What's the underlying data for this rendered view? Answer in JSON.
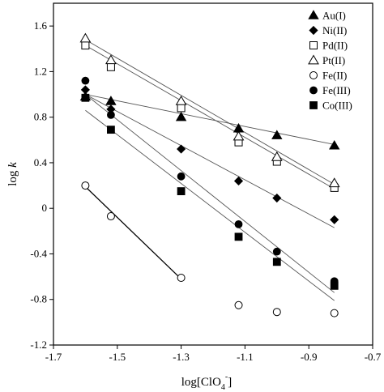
{
  "chart_data": {
    "type": "scatter",
    "xlabel": "log[ClO4-]",
    "ylabel": "log k",
    "xlim": [
      -1.7,
      -0.7
    ],
    "ylim": [
      -1.2,
      1.8
    ],
    "xticks": [
      -1.7,
      -1.5,
      -1.3,
      -1.1,
      -0.9,
      -0.7
    ],
    "xtick_labels": [
      "-1.7",
      "-1.5",
      "-1.3",
      "-1.1",
      "-0.9",
      "-0.7"
    ],
    "yticks": [
      -1.2,
      -0.8,
      -0.4,
      0,
      0.4,
      0.8,
      1.2,
      1.6
    ],
    "ytick_labels": [
      "-1.2",
      "-0.8",
      "-0.4",
      "0",
      "0.4",
      "0.8",
      "1.2",
      "1.6"
    ],
    "grid": false,
    "legend_position": "top-right",
    "series": [
      {
        "name": "Au(I)",
        "marker": "triangle-filled",
        "x": [
          -1.6,
          -1.52,
          -1.3,
          -1.12,
          -1.0,
          -0.82
        ],
        "y": [
          0.98,
          0.94,
          0.8,
          0.7,
          0.64,
          0.55
        ],
        "fit": {
          "x": [
            -1.6,
            -0.82
          ],
          "y": [
            1.0,
            0.56
          ],
          "color": "#555555"
        }
      },
      {
        "name": "Ni(II)",
        "marker": "diamond-filled",
        "x": [
          -1.6,
          -1.52,
          -1.3,
          -1.12,
          -1.0,
          -0.82
        ],
        "y": [
          1.04,
          0.87,
          0.52,
          0.24,
          0.09,
          -0.1
        ],
        "fit": {
          "x": [
            -1.6,
            -0.82
          ],
          "y": [
            1.0,
            -0.17
          ],
          "color": "#555555"
        }
      },
      {
        "name": "Pd(II)",
        "marker": "square-open",
        "x": [
          -1.6,
          -1.52,
          -1.3,
          -1.12,
          -1.0,
          -0.82
        ],
        "y": [
          1.43,
          1.24,
          0.88,
          0.58,
          0.41,
          0.18
        ],
        "fit": {
          "x": [
            -1.6,
            -0.82
          ],
          "y": [
            1.43,
            0.17
          ],
          "color": "#555555"
        }
      },
      {
        "name": "Pt(II)",
        "marker": "triangle-open",
        "x": [
          -1.6,
          -1.52,
          -1.3,
          -1.12,
          -1.0,
          -0.82
        ],
        "y": [
          1.49,
          1.3,
          0.94,
          0.63,
          0.45,
          0.22
        ],
        "fit": {
          "x": [
            -1.6,
            -0.82
          ],
          "y": [
            1.48,
            0.21
          ],
          "color": "#555555"
        }
      },
      {
        "name": "Fe(II)",
        "marker": "circle-open",
        "x": [
          -1.6,
          -1.52,
          -1.3,
          -1.12,
          -1.0,
          -0.82
        ],
        "y": [
          0.2,
          -0.07,
          -0.61,
          -0.85,
          -0.91,
          -0.92
        ],
        "fit": {
          "x": [
            -1.6,
            -1.3
          ],
          "y": [
            0.19,
            -0.62
          ],
          "color": "#000000"
        }
      },
      {
        "name": "Fe(III)",
        "marker": "circle-filled",
        "x": [
          -1.6,
          -1.52,
          -1.3,
          -1.12,
          -1.0,
          -0.82
        ],
        "y": [
          1.12,
          0.82,
          0.28,
          -0.14,
          -0.38,
          -0.64
        ],
        "fit": {
          "x": [
            -1.6,
            -0.82
          ],
          "y": [
            1.0,
            -0.74
          ],
          "color": "#555555"
        }
      },
      {
        "name": "Co(III)",
        "marker": "square-filled",
        "x": [
          -1.6,
          -1.52,
          -1.3,
          -1.12,
          -1.0,
          -0.82
        ],
        "y": [
          0.97,
          0.69,
          0.15,
          -0.25,
          -0.47,
          -0.68
        ],
        "fit": {
          "x": [
            -1.6,
            -0.82
          ],
          "y": [
            0.86,
            -0.81
          ],
          "color": "#555555"
        }
      }
    ]
  }
}
